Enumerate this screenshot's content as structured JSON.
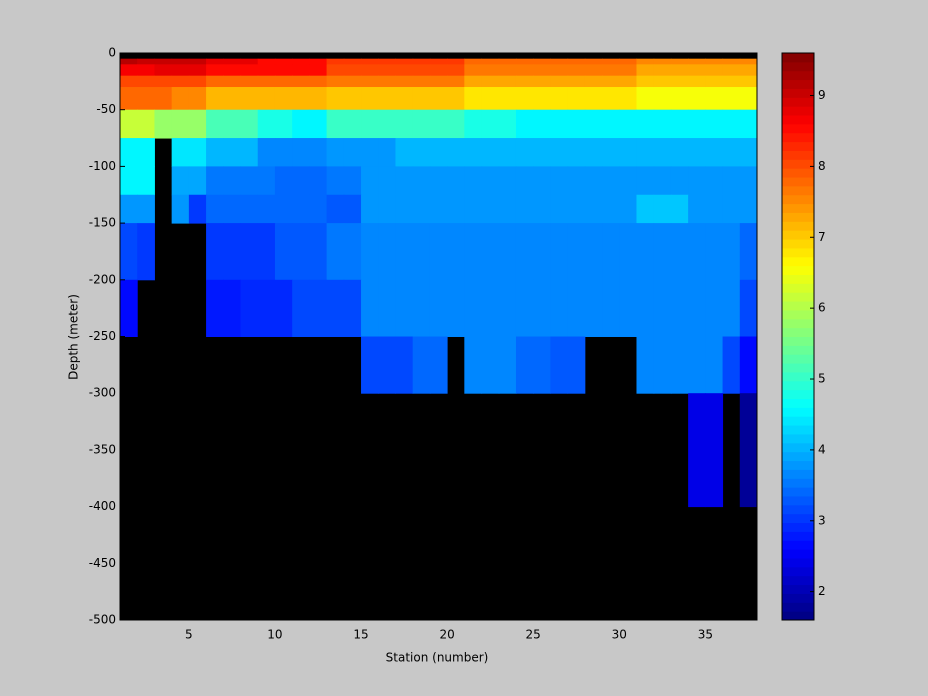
{
  "chart_data": {
    "type": "heatmap",
    "xlabel": "Station (number)",
    "ylabel": "Depth (meter)",
    "x": [
      1,
      2,
      3,
      4,
      5,
      6,
      7,
      8,
      9,
      10,
      11,
      12,
      13,
      14,
      15,
      16,
      17,
      18,
      19,
      20,
      21,
      22,
      23,
      24,
      25,
      26,
      27,
      28,
      29,
      30,
      31,
      32,
      33,
      34,
      35,
      36,
      37,
      38
    ],
    "y": [
      0,
      -5,
      -10,
      -20,
      -30,
      -50,
      -75,
      -100,
      -125,
      -150,
      -200,
      -250,
      -300,
      -400,
      -500
    ],
    "z": [
      [
        null,
        null,
        null,
        null,
        null,
        null,
        null,
        null,
        null,
        null,
        null,
        null,
        null,
        null,
        null,
        null,
        null,
        null,
        null,
        null,
        null,
        null,
        null,
        null,
        null,
        null,
        null,
        null,
        null,
        null,
        null,
        null,
        null,
        null,
        null,
        null,
        null
      ],
      [
        9.2,
        9.0,
        9.0,
        9.0,
        9.0,
        8.8,
        8.8,
        8.8,
        8.5,
        8.5,
        8.5,
        8.5,
        8.2,
        8.2,
        8.2,
        8.2,
        8.2,
        8.2,
        8.2,
        8.2,
        7.8,
        7.8,
        7.8,
        7.8,
        7.8,
        7.8,
        7.8,
        7.8,
        7.8,
        7.8,
        7.5,
        7.5,
        7.5,
        7.5,
        7.5,
        7.5,
        7.5
      ],
      [
        8.6,
        8.6,
        8.8,
        8.8,
        8.8,
        8.5,
        8.5,
        8.5,
        8.5,
        8.5,
        8.5,
        8.5,
        8.0,
        8.0,
        8.0,
        8.0,
        8.0,
        8.0,
        8.0,
        8.0,
        7.6,
        7.6,
        7.6,
        7.6,
        7.6,
        7.6,
        7.6,
        7.6,
        7.6,
        7.6,
        7.3,
        7.3,
        7.3,
        7.3,
        7.3,
        7.3,
        7.3
      ],
      [
        8.0,
        8.0,
        8.0,
        8.0,
        8.0,
        7.8,
        7.8,
        7.8,
        7.8,
        7.8,
        7.8,
        7.8,
        7.6,
        7.6,
        7.6,
        7.6,
        7.6,
        7.6,
        7.6,
        7.6,
        7.3,
        7.3,
        7.3,
        7.3,
        7.3,
        7.3,
        7.3,
        7.3,
        7.3,
        7.3,
        7.0,
        7.0,
        7.0,
        7.0,
        7.0,
        7.0,
        7.0
      ],
      [
        7.8,
        7.8,
        7.8,
        7.5,
        7.5,
        7.2,
        7.2,
        7.2,
        7.2,
        7.2,
        7.2,
        7.2,
        7.0,
        7.0,
        7.0,
        7.0,
        7.0,
        7.0,
        7.0,
        7.0,
        6.8,
        6.8,
        6.8,
        6.8,
        6.8,
        6.8,
        6.8,
        6.8,
        6.8,
        6.8,
        6.5,
        6.5,
        6.5,
        6.5,
        6.5,
        6.5,
        6.5
      ],
      [
        6.2,
        6.2,
        5.8,
        5.8,
        5.8,
        5.2,
        5.2,
        5.2,
        4.8,
        4.8,
        4.5,
        4.5,
        5.0,
        5.0,
        5.0,
        5.0,
        5.0,
        5.0,
        5.0,
        5.0,
        4.8,
        4.8,
        4.8,
        4.5,
        4.5,
        4.5,
        4.5,
        4.5,
        4.5,
        4.5,
        4.5,
        4.5,
        4.5,
        4.5,
        4.5,
        4.5,
        4.5
      ],
      [
        4.5,
        4.5,
        null,
        4.4,
        4.4,
        4.0,
        4.0,
        4.0,
        3.7,
        3.7,
        3.7,
        3.7,
        3.8,
        3.8,
        3.8,
        3.8,
        4.0,
        4.0,
        4.0,
        4.0,
        4.0,
        4.0,
        4.0,
        4.0,
        4.0,
        4.0,
        4.0,
        4.0,
        4.0,
        4.0,
        4.0,
        4.0,
        4.0,
        4.0,
        4.0,
        4.0,
        4.0
      ],
      [
        4.5,
        4.5,
        null,
        3.9,
        3.9,
        3.5,
        3.5,
        3.5,
        3.5,
        3.4,
        3.4,
        3.4,
        3.5,
        3.5,
        3.8,
        3.8,
        3.8,
        3.8,
        3.8,
        3.8,
        3.8,
        3.8,
        3.8,
        3.8,
        3.8,
        3.8,
        3.8,
        3.8,
        3.8,
        3.8,
        3.8,
        3.8,
        3.8,
        3.8,
        3.8,
        3.8,
        3.8
      ],
      [
        3.8,
        3.8,
        null,
        3.8,
        3.0,
        3.4,
        3.4,
        3.4,
        3.4,
        3.4,
        3.4,
        3.4,
        3.3,
        3.3,
        3.8,
        3.8,
        3.8,
        3.8,
        3.8,
        3.8,
        3.8,
        3.8,
        3.8,
        3.8,
        3.8,
        3.8,
        3.8,
        3.8,
        3.8,
        3.8,
        4.2,
        4.2,
        4.2,
        3.8,
        3.8,
        3.8,
        3.8
      ],
      [
        3.2,
        3.0,
        null,
        null,
        null,
        3.0,
        3.0,
        3.0,
        3.0,
        3.3,
        3.3,
        3.3,
        3.5,
        3.5,
        3.7,
        3.7,
        3.7,
        3.7,
        3.7,
        3.7,
        3.7,
        3.7,
        3.7,
        3.7,
        3.7,
        3.7,
        3.7,
        3.7,
        3.7,
        3.7,
        3.7,
        3.7,
        3.7,
        3.7,
        3.7,
        3.7,
        3.4
      ],
      [
        2.6,
        null,
        null,
        null,
        null,
        2.8,
        2.8,
        2.9,
        2.9,
        2.9,
        3.2,
        3.2,
        3.2,
        3.2,
        3.6,
        3.6,
        3.6,
        3.6,
        3.6,
        3.6,
        3.6,
        3.6,
        3.6,
        3.6,
        3.6,
        3.6,
        3.6,
        3.6,
        3.6,
        3.6,
        3.6,
        3.6,
        3.6,
        3.6,
        3.6,
        3.6,
        3.1
      ],
      [
        null,
        null,
        null,
        null,
        null,
        null,
        null,
        null,
        null,
        null,
        null,
        null,
        null,
        null,
        3.1,
        3.2,
        3.2,
        3.4,
        3.4,
        null,
        3.6,
        3.7,
        3.7,
        3.4,
        3.4,
        3.3,
        3.3,
        null,
        null,
        null,
        3.6,
        3.6,
        3.6,
        3.6,
        3.6,
        3.2,
        2.6
      ],
      [
        null,
        null,
        null,
        null,
        null,
        null,
        null,
        null,
        null,
        null,
        null,
        null,
        null,
        null,
        null,
        null,
        null,
        null,
        null,
        null,
        null,
        null,
        null,
        null,
        null,
        null,
        null,
        null,
        null,
        null,
        null,
        null,
        null,
        2.4,
        2.4,
        null,
        1.8
      ],
      [
        null,
        null,
        null,
        null,
        null,
        null,
        null,
        null,
        null,
        null,
        null,
        null,
        null,
        null,
        null,
        null,
        null,
        null,
        null,
        null,
        null,
        null,
        null,
        null,
        null,
        null,
        null,
        null,
        null,
        null,
        null,
        null,
        null,
        null,
        null,
        null,
        null
      ]
    ],
    "xlim": [
      1,
      38
    ],
    "xticks": [
      5,
      10,
      15,
      20,
      25,
      30,
      35
    ],
    "ylim": [
      -500,
      0
    ],
    "yticks": [
      -500,
      -450,
      -400,
      -350,
      -300,
      -250,
      -200,
      -150,
      -100,
      -50,
      0
    ],
    "colormap": "jet",
    "clim": [
      1.6,
      9.6
    ],
    "cticks": [
      2,
      3,
      4,
      5,
      6,
      7,
      8,
      9
    ],
    "background": "#000000"
  }
}
